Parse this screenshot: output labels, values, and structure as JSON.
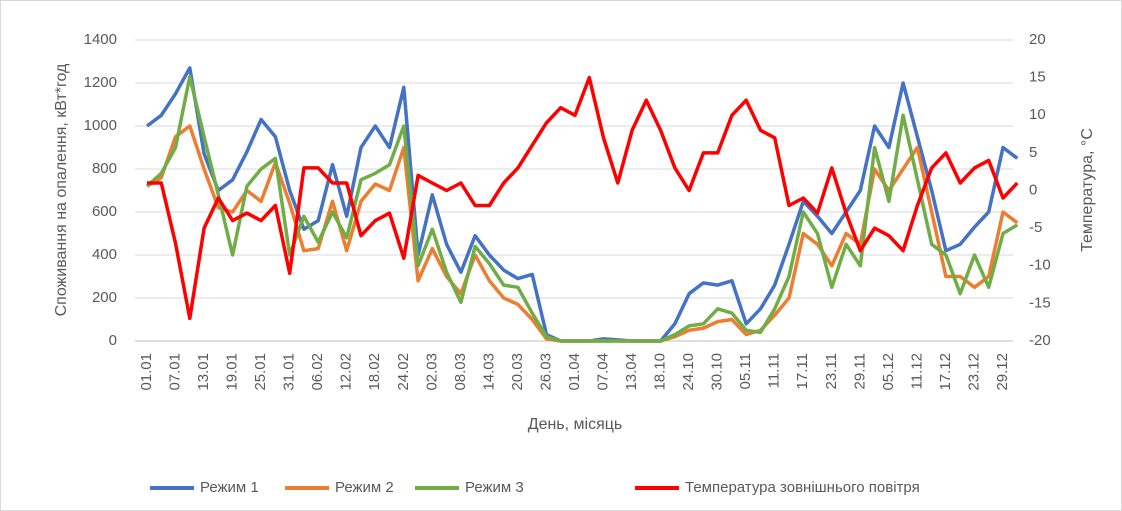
{
  "chart_data": {
    "type": "line",
    "x_label": "День, місяць",
    "y_label": "Споживання на опалення, кВт*год",
    "y2_label": "Температура, °С",
    "categories": [
      "01.01",
      null,
      "07.01",
      null,
      "13.01",
      null,
      "19.01",
      null,
      "25.01",
      null,
      "31.01",
      null,
      "06.02",
      null,
      "12.02",
      null,
      "18.02",
      null,
      "24.02",
      null,
      "02.03",
      null,
      "08.03",
      null,
      "14.03",
      null,
      "20.03",
      null,
      "26.03",
      null,
      "01.04",
      null,
      "07.04",
      null,
      "13.04",
      null,
      "18.10",
      null,
      "24.10",
      null,
      "30.10",
      null,
      "05.11",
      null,
      "11.11",
      null,
      "17.11",
      null,
      "23.11",
      null,
      "29.11",
      null,
      "05.12",
      null,
      "11.12",
      null,
      "17.12",
      null,
      "23.12",
      null,
      "29.12",
      null
    ],
    "ylim": [
      0,
      1400
    ],
    "yticks": [
      0,
      200,
      400,
      600,
      800,
      1000,
      1200,
      1400
    ],
    "y2lim": [
      -20,
      20
    ],
    "y2ticks": [
      -20,
      -15,
      -10,
      -5,
      0,
      5,
      10,
      15,
      20
    ],
    "grid": true,
    "legend": "bottom",
    "series": [
      {
        "name": "Режим 1",
        "color": "#4472c4",
        "values": [
          1000,
          1050,
          1150,
          1270,
          870,
          700,
          750,
          880,
          1030,
          950,
          700,
          520,
          560,
          820,
          580,
          900,
          1000,
          900,
          1180,
          400,
          680,
          450,
          320,
          490,
          400,
          330,
          290,
          310,
          30,
          0,
          0,
          0,
          10,
          5,
          0,
          0,
          0,
          80,
          220,
          270,
          260,
          280,
          80,
          150,
          260,
          450,
          650,
          580,
          500,
          600,
          700,
          1000,
          900,
          1200,
          950,
          700,
          420,
          450,
          530,
          600,
          900,
          850
        ]
      },
      {
        "name": "Режим 2",
        "color": "#ed7d31",
        "values": [
          720,
          760,
          950,
          1000,
          800,
          620,
          600,
          700,
          650,
          830,
          640,
          420,
          430,
          650,
          420,
          650,
          730,
          700,
          900,
          280,
          430,
          300,
          220,
          400,
          280,
          200,
          170,
          100,
          10,
          0,
          0,
          0,
          0,
          0,
          0,
          0,
          0,
          20,
          50,
          60,
          90,
          100,
          30,
          50,
          120,
          200,
          500,
          450,
          350,
          500,
          450,
          800,
          700,
          800,
          900,
          600,
          300,
          300,
          250,
          300,
          600,
          550
        ]
      },
      {
        "name": "Режим 3",
        "color": "#70ad47",
        "values": [
          720,
          780,
          900,
          1230,
          950,
          680,
          400,
          720,
          800,
          850,
          400,
          580,
          460,
          600,
          480,
          750,
          780,
          820,
          1000,
          350,
          520,
          320,
          180,
          440,
          360,
          260,
          250,
          130,
          20,
          0,
          0,
          0,
          0,
          0,
          0,
          0,
          0,
          30,
          70,
          80,
          150,
          130,
          50,
          40,
          150,
          300,
          600,
          500,
          250,
          450,
          350,
          900,
          650,
          1050,
          750,
          450,
          400,
          220,
          400,
          250,
          500,
          540
        ]
      },
      {
        "name": "Температура зовнішнього повітря",
        "color": "#ff0000",
        "axis": "y2",
        "values": [
          1,
          1,
          -7,
          -17,
          -5,
          -1,
          -4,
          -3,
          -4,
          -2,
          -11,
          3,
          3,
          1,
          1,
          -6,
          -4,
          -3,
          -9,
          2,
          1,
          0,
          1,
          -2,
          -2,
          1,
          3,
          6,
          9,
          11,
          10,
          15,
          7,
          1,
          8,
          12,
          8,
          3,
          0,
          5,
          5,
          10,
          12,
          8,
          7,
          -2,
          -1,
          -3,
          3,
          -3,
          -8,
          -5,
          -6,
          -8,
          -2,
          3,
          5,
          1,
          3,
          4,
          -1,
          1
        ]
      }
    ]
  }
}
